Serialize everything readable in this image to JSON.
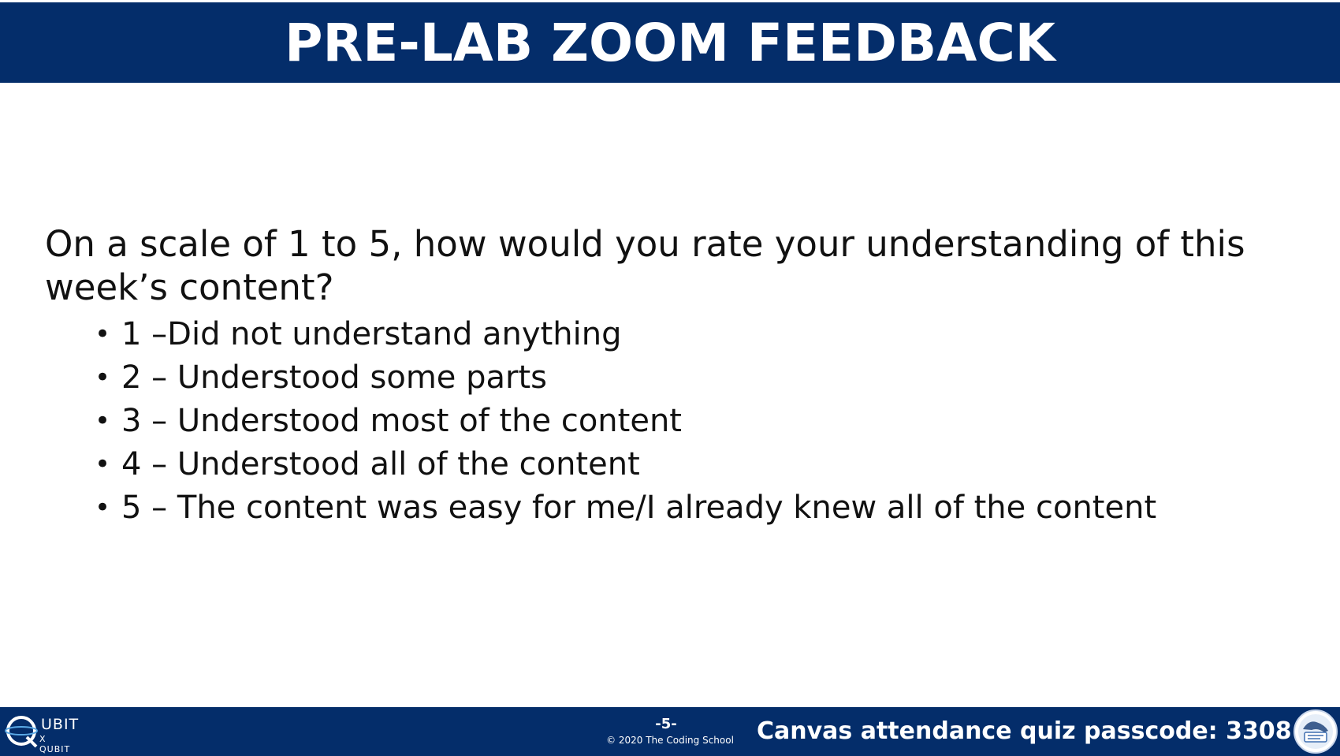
{
  "header": {
    "title": "PRE-LAB ZOOM FEEDBACK"
  },
  "content": {
    "question": "On a scale of 1 to 5, how would you rate your understanding of this week’s content?",
    "options": [
      "1 –Did not understand anything",
      "2 – Understood some parts",
      "3 – Understood most of the content",
      "4 – Understood all of the content",
      "5 – The content was easy for me/I already knew all of the content"
    ]
  },
  "footer": {
    "logo_text_upper": "UBIT",
    "logo_text_lower": "X QUBIT",
    "page_number": "-5-",
    "copyright": "© 2020 The Coding School",
    "passcode_text": "Canvas attendance quiz passcode: 3308",
    "school_logo_label": "The Coding School",
    "logo_icon": "qubit-logo-icon",
    "school_logo_icon": "coding-school-logo-icon"
  },
  "colors": {
    "brand_navy": "#042d6a",
    "text": "#111111",
    "background": "#ffffff"
  }
}
